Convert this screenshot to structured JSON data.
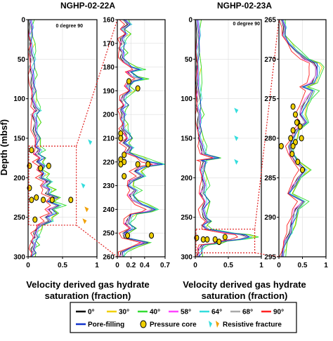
{
  "figure": {
    "titles": [
      "NGHP-02-22A",
      "NGHP-02-23A"
    ],
    "xlabel_lines": [
      "Velocity derived gas hydrate",
      "saturation (fraction)"
    ],
    "ylabel": "Depth (mbsf)",
    "degree_label": "0   degree  90"
  },
  "legend": {
    "entries": [
      {
        "label": "0°",
        "color": "#000000",
        "kind": "line"
      },
      {
        "label": "30°",
        "color": "#f0d000",
        "kind": "line"
      },
      {
        "label": "40°",
        "color": "#33dd33",
        "kind": "line"
      },
      {
        "label": "58°",
        "color": "#ff44ff",
        "kind": "line"
      },
      {
        "label": "64°",
        "color": "#33dddd",
        "kind": "line"
      },
      {
        "label": "68°",
        "color": "#aaaaaa",
        "kind": "line"
      },
      {
        "label": "90°",
        "color": "#ff2222",
        "kind": "line"
      },
      {
        "label": "Pore-filling",
        "color": "#1133cc",
        "kind": "line"
      },
      {
        "label": "Pressure core",
        "color": "#f0d000",
        "kind": "circle"
      },
      {
        "label": "Resistive fracture",
        "color": "#33dddd",
        "kind": "fracture"
      }
    ]
  },
  "chart_data": [
    {
      "type": "line",
      "well": "NGHP-02-22A",
      "xlabel": "",
      "ylabel": "Depth (mbsf)",
      "xlim": [
        0,
        1
      ],
      "ylim": [
        0,
        300
      ],
      "xticks": [
        0,
        0.5,
        1
      ],
      "xtick_labels": [
        "0",
        "0.5",
        "1"
      ],
      "yticks": [
        0,
        50,
        100,
        150,
        200,
        250,
        300
      ],
      "degree_axis": [
        0,
        90
      ],
      "profile": [
        [
          0,
          0.01
        ],
        [
          10,
          0.02
        ],
        [
          20,
          0.01
        ],
        [
          30,
          0.03
        ],
        [
          40,
          0.02
        ],
        [
          50,
          0.04
        ],
        [
          60,
          0.03
        ],
        [
          70,
          0.05
        ],
        [
          80,
          0.04
        ],
        [
          90,
          0.06
        ],
        [
          100,
          0.05
        ],
        [
          110,
          0.08
        ],
        [
          115,
          0.12
        ],
        [
          120,
          0.06
        ],
        [
          130,
          0.1
        ],
        [
          140,
          0.07
        ],
        [
          150,
          0.12
        ],
        [
          160,
          0.1
        ],
        [
          165,
          0.15
        ],
        [
          170,
          0.1
        ],
        [
          175,
          0.18
        ],
        [
          180,
          0.12
        ],
        [
          185,
          0.2
        ],
        [
          190,
          0.15
        ],
        [
          195,
          0.22
        ],
        [
          200,
          0.16
        ],
        [
          205,
          0.28
        ],
        [
          210,
          0.2
        ],
        [
          215,
          0.3
        ],
        [
          220,
          0.25
        ],
        [
          225,
          0.38
        ],
        [
          230,
          0.28
        ],
        [
          235,
          0.42
        ],
        [
          240,
          0.3
        ],
        [
          245,
          0.35
        ],
        [
          250,
          0.25
        ],
        [
          255,
          0.3
        ],
        [
          260,
          0.15
        ],
        [
          265,
          0.12
        ],
        [
          270,
          0.08
        ],
        [
          275,
          0.1
        ],
        [
          280,
          0.05
        ],
        [
          285,
          0.08
        ],
        [
          290,
          0.04
        ],
        [
          295,
          0.06
        ],
        [
          300,
          0.03
        ]
      ],
      "pressure_cores": [
        [
          0.05,
          165
        ],
        [
          0.02,
          185
        ],
        [
          0.3,
          185
        ],
        [
          0.18,
          188
        ],
        [
          0.02,
          213
        ],
        [
          0.12,
          225
        ],
        [
          0.05,
          228
        ],
        [
          0.22,
          228
        ],
        [
          0.35,
          228
        ],
        [
          0.62,
          228
        ],
        [
          0.1,
          253
        ]
      ],
      "resistive_fractures": [
        [
          0.9,
          155
        ],
        [
          0.85,
          240
        ],
        [
          0.8,
          210
        ],
        [
          0.82,
          255
        ]
      ],
      "zoom_box": {
        "depth": [
          160,
          260
        ],
        "x": [
          0,
          0.7
        ]
      }
    },
    {
      "type": "line",
      "well": "NGHP-02-22A zoom",
      "xlim": [
        0,
        0.7
      ],
      "ylim": [
        160,
        260
      ],
      "xticks": [
        0,
        0.2,
        0.4,
        0.7
      ],
      "xtick_labels": [
        "0",
        "0.2",
        "0.4",
        "0.7"
      ],
      "yticks": [
        160,
        170,
        180,
        190,
        200,
        210,
        220,
        230,
        240,
        250,
        260
      ],
      "profile": [
        [
          160,
          0.08
        ],
        [
          162,
          0.15
        ],
        [
          164,
          0.05
        ],
        [
          166,
          0.12
        ],
        [
          168,
          0.04
        ],
        [
          170,
          0.06
        ],
        [
          172,
          0.03
        ],
        [
          174,
          0.07
        ],
        [
          176,
          0.04
        ],
        [
          178,
          0.1
        ],
        [
          180,
          0.2
        ],
        [
          181,
          0.3
        ],
        [
          182,
          0.15
        ],
        [
          184,
          0.22
        ],
        [
          185,
          0.35
        ],
        [
          186,
          0.2
        ],
        [
          188,
          0.12
        ],
        [
          190,
          0.18
        ],
        [
          192,
          0.08
        ],
        [
          194,
          0.05
        ],
        [
          196,
          0.1
        ],
        [
          198,
          0.04
        ],
        [
          200,
          0.07
        ],
        [
          202,
          0.05
        ],
        [
          204,
          0.08
        ],
        [
          206,
          0.06
        ],
        [
          208,
          0.12
        ],
        [
          210,
          0.15
        ],
        [
          212,
          0.08
        ],
        [
          214,
          0.18
        ],
        [
          216,
          0.12
        ],
        [
          218,
          0.3
        ],
        [
          220,
          0.45
        ],
        [
          221,
          0.62
        ],
        [
          222,
          0.35
        ],
        [
          224,
          0.25
        ],
        [
          226,
          0.35
        ],
        [
          228,
          0.18
        ],
        [
          230,
          0.15
        ],
        [
          232,
          0.25
        ],
        [
          234,
          0.18
        ],
        [
          236,
          0.22
        ],
        [
          238,
          0.35
        ],
        [
          240,
          0.52
        ],
        [
          241,
          0.42
        ],
        [
          242,
          0.2
        ],
        [
          244,
          0.15
        ],
        [
          246,
          0.12
        ],
        [
          248,
          0.2
        ],
        [
          250,
          0.08
        ],
        [
          252,
          0.1
        ],
        [
          254,
          0.4
        ],
        [
          256,
          0.2
        ],
        [
          258,
          0.05
        ],
        [
          260,
          0.04
        ]
      ],
      "pressure_cores": [
        [
          0.17,
          186
        ],
        [
          0.3,
          189
        ],
        [
          0.05,
          208
        ],
        [
          0.05,
          210
        ],
        [
          0.1,
          217
        ],
        [
          0.05,
          219
        ],
        [
          0.1,
          220
        ],
        [
          0.05,
          221
        ],
        [
          0.3,
          221
        ],
        [
          0.1,
          226
        ],
        [
          0.45,
          221
        ],
        [
          0.15,
          251
        ],
        [
          0.5,
          251
        ]
      ]
    },
    {
      "type": "line",
      "well": "NGHP-02-23A",
      "xlim": [
        0,
        1
      ],
      "ylim": [
        0,
        300
      ],
      "xticks": [
        0,
        0.5,
        1
      ],
      "xtick_labels": [
        "0",
        "0.5",
        "1"
      ],
      "yticks": [
        0,
        50,
        100,
        150,
        200,
        250,
        300
      ],
      "degree_axis": [
        0,
        90
      ],
      "profile": [
        [
          0,
          0.01
        ],
        [
          20,
          0.02
        ],
        [
          40,
          0.01
        ],
        [
          60,
          0.02
        ],
        [
          80,
          0.01
        ],
        [
          100,
          0.03
        ],
        [
          110,
          0.02
        ],
        [
          120,
          0.05
        ],
        [
          130,
          0.03
        ],
        [
          140,
          0.04
        ],
        [
          150,
          0.05
        ],
        [
          160,
          0.08
        ],
        [
          170,
          0.1
        ],
        [
          175,
          0.3
        ],
        [
          178,
          0.08
        ],
        [
          180,
          0.12
        ],
        [
          190,
          0.08
        ],
        [
          200,
          0.1
        ],
        [
          210,
          0.12
        ],
        [
          220,
          0.08
        ],
        [
          230,
          0.15
        ],
        [
          240,
          0.1
        ],
        [
          250,
          0.12
        ],
        [
          255,
          0.18
        ],
        [
          260,
          0.1
        ],
        [
          265,
          0.15
        ],
        [
          270,
          0.5
        ],
        [
          272,
          0.7
        ],
        [
          275,
          0.8
        ],
        [
          278,
          0.65
        ],
        [
          280,
          0.4
        ],
        [
          283,
          0.3
        ],
        [
          285,
          0.1
        ],
        [
          290,
          0.05
        ],
        [
          295,
          0.04
        ],
        [
          300,
          0.03
        ]
      ],
      "pressure_cores": [
        [
          0.02,
          276
        ],
        [
          0.12,
          278
        ],
        [
          0.18,
          278
        ],
        [
          0.3,
          278
        ],
        [
          0.36,
          281
        ],
        [
          0.45,
          275
        ]
      ],
      "resistive_fractures": [
        [
          0.62,
          150
        ],
        [
          0.62,
          180
        ],
        [
          0.62,
          115
        ]
      ],
      "zoom_box": {
        "depth": [
          265,
          295
        ],
        "x": [
          0,
          0.9
        ]
      }
    },
    {
      "type": "line",
      "well": "NGHP-02-23A zoom",
      "xlim": [
        0,
        1
      ],
      "ylim": [
        265,
        295
      ],
      "xticks": [
        0,
        0.5,
        1
      ],
      "xtick_labels": [
        "0",
        "0.5",
        "1"
      ],
      "yticks": [
        265,
        270,
        275,
        280,
        285,
        290,
        295
      ],
      "profile": [
        [
          265,
          0.05
        ],
        [
          266,
          0.1
        ],
        [
          267,
          0.08
        ],
        [
          268,
          0.2
        ],
        [
          269,
          0.35
        ],
        [
          270,
          0.55
        ],
        [
          270.5,
          0.75
        ],
        [
          271,
          0.8
        ],
        [
          272,
          0.78
        ],
        [
          273,
          0.7
        ],
        [
          273.5,
          0.5
        ],
        [
          274,
          0.7
        ],
        [
          275,
          0.6
        ],
        [
          276,
          0.5
        ],
        [
          277,
          0.45
        ],
        [
          278,
          0.55
        ],
        [
          279,
          0.35
        ],
        [
          280,
          0.3
        ],
        [
          281,
          0.2
        ],
        [
          282,
          0.25
        ],
        [
          283,
          0.35
        ],
        [
          284,
          0.55
        ],
        [
          285,
          0.4
        ],
        [
          286,
          0.3
        ],
        [
          287,
          0.2
        ],
        [
          288,
          0.5
        ],
        [
          289,
          0.35
        ],
        [
          290,
          0.3
        ],
        [
          291,
          0.25
        ],
        [
          292,
          0.22
        ],
        [
          293,
          0.12
        ],
        [
          294,
          0.08
        ],
        [
          295,
          0.05
        ]
      ],
      "pressure_cores": [
        [
          0.3,
          276
        ],
        [
          0.35,
          277
        ],
        [
          0.4,
          278
        ],
        [
          0.45,
          278.5
        ],
        [
          0.3,
          279
        ],
        [
          0.25,
          280
        ],
        [
          0.35,
          280.5
        ],
        [
          0.3,
          281
        ],
        [
          0.28,
          282
        ],
        [
          0.4,
          283
        ],
        [
          0.5,
          284
        ],
        [
          0.05,
          281
        ],
        [
          0.38,
          278
        ],
        [
          0.48,
          280
        ]
      ]
    }
  ]
}
